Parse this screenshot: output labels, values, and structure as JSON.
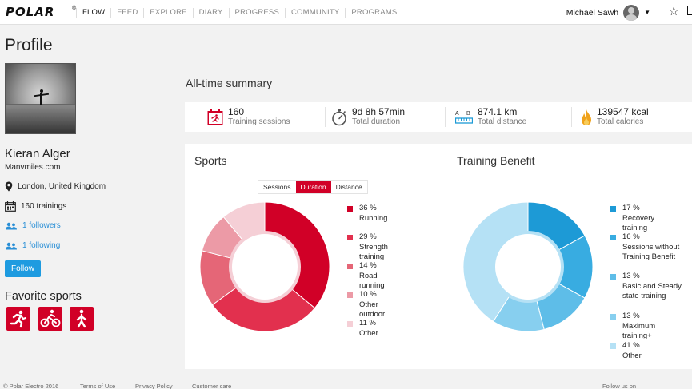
{
  "nav": {
    "logo": "POLAR",
    "logo_mark": "®",
    "items": [
      "FLOW",
      "FEED",
      "EXPLORE",
      "DIARY",
      "PROGRESS",
      "COMMUNITY",
      "PROGRAMS"
    ],
    "active": "FLOW",
    "user_name": "Michael Sawh"
  },
  "profile": {
    "page_title": "Profile",
    "name": "Kieran Alger",
    "website": "Manvmiles.com",
    "location": "London, United Kingdom",
    "trainings": "160 trainings",
    "followers": "1 followers",
    "following": "1 following",
    "follow_button": "Follow",
    "favorite_sports_title": "Favorite sports",
    "favorite_sports": [
      "running-icon",
      "cycling-icon",
      "walking-icon"
    ]
  },
  "summary": {
    "title": "All-time summary",
    "items": [
      {
        "value": "160",
        "label": "Training sessions",
        "icon": "calendar-icon"
      },
      {
        "value": "9d 8h 57min",
        "label": "Total duration",
        "icon": "stopwatch-icon"
      },
      {
        "value": "874.1 km",
        "label": "Total distance",
        "icon": "distance-icon"
      },
      {
        "value": "139547 kcal",
        "label": "Total calories",
        "icon": "flame-icon"
      }
    ]
  },
  "sports": {
    "title": "Sports",
    "toggle": [
      "Sessions",
      "Duration",
      "Distance"
    ],
    "toggle_active": "Duration",
    "legend": [
      {
        "pct": "36 %",
        "label": "Running"
      },
      {
        "pct": "29 %",
        "label": "Strength training"
      },
      {
        "pct": "14 %",
        "label": "Road running"
      },
      {
        "pct": "10 %",
        "label": "Other outdoor"
      },
      {
        "pct": "11 %",
        "label": "Other"
      }
    ]
  },
  "benefit": {
    "title": "Training Benefit",
    "legend": [
      {
        "pct": "17 %",
        "label": "Recovery training"
      },
      {
        "pct": "16 %",
        "label": "Sessions without Training Benefit"
      },
      {
        "pct": "13 %",
        "label": "Basic and Steady state training"
      },
      {
        "pct": "13 %",
        "label": "Maximum training+"
      },
      {
        "pct": "41 %",
        "label": "Other"
      }
    ]
  },
  "chart_data": [
    {
      "type": "pie",
      "title": "Sports",
      "categories": [
        "Running",
        "Strength training",
        "Road running",
        "Other outdoor",
        "Other"
      ],
      "values": [
        36,
        29,
        14,
        10,
        11
      ],
      "colors": [
        "#d10027",
        "#e2304e",
        "#e56677",
        "#ec9aa6",
        "#f5cfd6"
      ]
    },
    {
      "type": "pie",
      "title": "Training Benefit",
      "categories": [
        "Recovery training",
        "Sessions without Training Benefit",
        "Basic and Steady state training",
        "Maximum training+",
        "Other"
      ],
      "values": [
        17,
        16,
        13,
        13,
        41
      ],
      "colors": [
        "#1d9ad6",
        "#38ace1",
        "#5ebde8",
        "#87cfef",
        "#b5e1f5"
      ]
    }
  ],
  "footer": {
    "copyright": "© Polar Electro 2016",
    "terms": "Terms of Use",
    "privacy": "Privacy Policy",
    "care": "Customer care",
    "follow": "Follow us on"
  }
}
